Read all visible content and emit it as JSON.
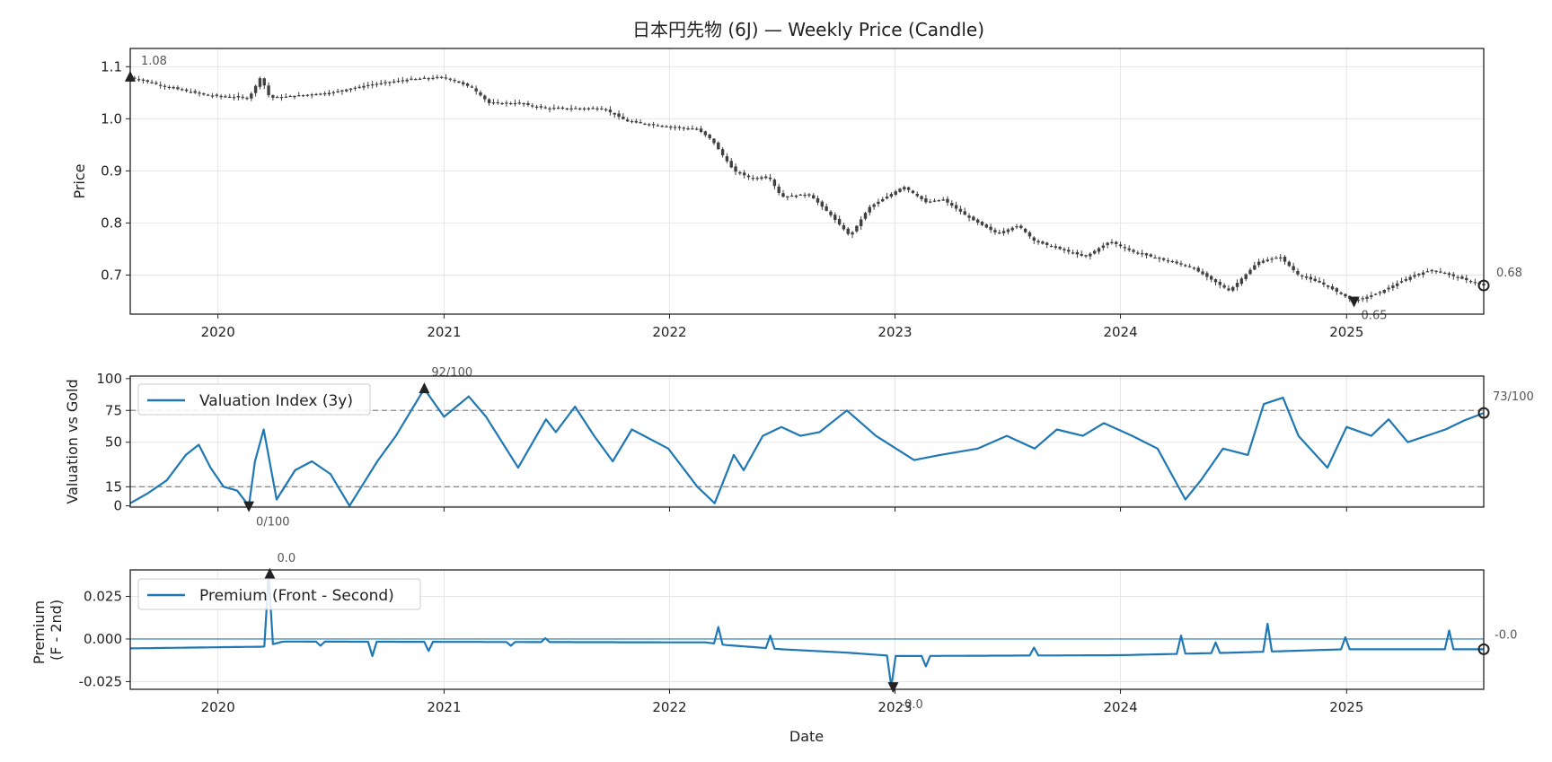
{
  "chart_data": [
    {
      "type": "candlestick",
      "title": "日本円先物 (6J) — Weekly Price (Candle)",
      "xlabel": "",
      "ylabel": "Price",
      "xlim": [
        "2019-08-12",
        "2025-08-11"
      ],
      "ylim": [
        0.625,
        1.135
      ],
      "x_ticks": [
        "2020",
        "2021",
        "2022",
        "2023",
        "2024",
        "2025"
      ],
      "y_ticks": [
        "0.7",
        "0.8",
        "0.9",
        "1.0",
        "1.1"
      ],
      "grid": true,
      "annotations": [
        {
          "label": "1.08",
          "x": "2019-08-12",
          "y": 1.08,
          "marker": "up-triangle"
        },
        {
          "label": "0.65",
          "x": "2025-01-13",
          "y": 0.65,
          "marker": "down-triangle"
        },
        {
          "label": "0.68",
          "x": "2025-08-11",
          "y": 0.68,
          "marker": "circle"
        }
      ],
      "close_anchors": [
        [
          "2019-08-12",
          1.08
        ],
        [
          "2019-10-15",
          1.06
        ],
        [
          "2019-12-15",
          1.045
        ],
        [
          "2020-02-20",
          1.04
        ],
        [
          "2020-03-10",
          1.08
        ],
        [
          "2020-03-25",
          1.04
        ],
        [
          "2020-05-15",
          1.045
        ],
        [
          "2020-07-01",
          1.05
        ],
        [
          "2020-09-01",
          1.065
        ],
        [
          "2020-11-01",
          1.075
        ],
        [
          "2021-01-01",
          1.08
        ],
        [
          "2021-02-15",
          1.06
        ],
        [
          "2021-03-15",
          1.03
        ],
        [
          "2021-05-01",
          1.03
        ],
        [
          "2021-06-15",
          1.02
        ],
        [
          "2021-09-15",
          1.02
        ],
        [
          "2021-10-25",
          0.995
        ],
        [
          "2021-12-30",
          0.985
        ],
        [
          "2022-02-15",
          0.98
        ],
        [
          "2022-03-10",
          0.96
        ],
        [
          "2022-04-15",
          0.9
        ],
        [
          "2022-05-15",
          0.885
        ],
        [
          "2022-06-10",
          0.89
        ],
        [
          "2022-07-01",
          0.85
        ],
        [
          "2022-08-15",
          0.855
        ],
        [
          "2022-09-15",
          0.82
        ],
        [
          "2022-10-20",
          0.775
        ],
        [
          "2022-11-20",
          0.83
        ],
        [
          "2023-01-15",
          0.87
        ],
        [
          "2023-02-20",
          0.84
        ],
        [
          "2023-03-20",
          0.845
        ],
        [
          "2023-05-01",
          0.81
        ],
        [
          "2023-06-15",
          0.78
        ],
        [
          "2023-07-20",
          0.795
        ],
        [
          "2023-08-15",
          0.765
        ],
        [
          "2023-11-05",
          0.735
        ],
        [
          "2023-12-15",
          0.765
        ],
        [
          "2024-01-20",
          0.745
        ],
        [
          "2024-04-25",
          0.715
        ],
        [
          "2024-06-25",
          0.67
        ],
        [
          "2024-07-25",
          0.705
        ],
        [
          "2024-08-10",
          0.725
        ],
        [
          "2024-09-15",
          0.735
        ],
        [
          "2024-10-15",
          0.7
        ],
        [
          "2024-11-20",
          0.685
        ],
        [
          "2025-01-13",
          0.65
        ],
        [
          "2025-02-20",
          0.665
        ],
        [
          "2025-04-20",
          0.7
        ],
        [
          "2025-05-20",
          0.71
        ],
        [
          "2025-07-01",
          0.695
        ],
        [
          "2025-08-11",
          0.68
        ]
      ]
    },
    {
      "type": "line",
      "ylabel": "Valuation vs Gold",
      "ylim": [
        -1,
        102
      ],
      "x_ticks": [
        "2020",
        "2021",
        "2022",
        "2023",
        "2024",
        "2025"
      ],
      "y_ticks": [
        "0",
        "15",
        "50",
        "75",
        "100"
      ],
      "reference_lines": [
        75,
        15
      ],
      "legend": {
        "label": "Valuation Index (3y)",
        "position": "top-left"
      },
      "series": [
        {
          "name": "Valuation Index (3y)",
          "points": [
            [
              "2019-08-12",
              2
            ],
            [
              "2019-09-10",
              10
            ],
            [
              "2019-10-10",
              20
            ],
            [
              "2019-11-10",
              40
            ],
            [
              "2019-12-01",
              48
            ],
            [
              "2019-12-20",
              30
            ],
            [
              "2020-01-10",
              15
            ],
            [
              "2020-02-01",
              12
            ],
            [
              "2020-02-20",
              0
            ],
            [
              "2020-03-01",
              35
            ],
            [
              "2020-03-15",
              60
            ],
            [
              "2020-04-05",
              5
            ],
            [
              "2020-05-05",
              28
            ],
            [
              "2020-06-01",
              35
            ],
            [
              "2020-07-01",
              25
            ],
            [
              "2020-08-01",
              0
            ],
            [
              "2020-09-15",
              35
            ],
            [
              "2020-10-15",
              55
            ],
            [
              "2020-11-30",
              92
            ],
            [
              "2021-01-01",
              70
            ],
            [
              "2021-02-10",
              86
            ],
            [
              "2021-03-10",
              70
            ],
            [
              "2021-05-01",
              30
            ],
            [
              "2021-06-15",
              68
            ],
            [
              "2021-07-01",
              58
            ],
            [
              "2021-08-01",
              78
            ],
            [
              "2021-09-01",
              55
            ],
            [
              "2021-10-01",
              35
            ],
            [
              "2021-11-01",
              60
            ],
            [
              "2021-12-30",
              45
            ],
            [
              "2022-02-15",
              15
            ],
            [
              "2022-03-15",
              2
            ],
            [
              "2022-04-15",
              40
            ],
            [
              "2022-05-01",
              28
            ],
            [
              "2022-06-01",
              55
            ],
            [
              "2022-07-01",
              62
            ],
            [
              "2022-08-01",
              55
            ],
            [
              "2022-09-01",
              58
            ],
            [
              "2022-10-15",
              75
            ],
            [
              "2022-12-01",
              55
            ],
            [
              "2023-02-01",
              36
            ],
            [
              "2023-03-15",
              40
            ],
            [
              "2023-05-15",
              45
            ],
            [
              "2023-07-01",
              55
            ],
            [
              "2023-08-15",
              45
            ],
            [
              "2023-09-20",
              60
            ],
            [
              "2023-11-01",
              55
            ],
            [
              "2023-12-05",
              65
            ],
            [
              "2024-01-20",
              55
            ],
            [
              "2024-03-01",
              45
            ],
            [
              "2024-04-15",
              5
            ],
            [
              "2024-05-10",
              20
            ],
            [
              "2024-06-15",
              45
            ],
            [
              "2024-07-25",
              40
            ],
            [
              "2024-08-20",
              80
            ],
            [
              "2024-09-20",
              85
            ],
            [
              "2024-10-15",
              55
            ],
            [
              "2024-12-01",
              30
            ],
            [
              "2025-01-01",
              62
            ],
            [
              "2025-02-10",
              55
            ],
            [
              "2025-03-10",
              68
            ],
            [
              "2025-04-10",
              50
            ],
            [
              "2025-06-10",
              60
            ],
            [
              "2025-07-10",
              67
            ],
            [
              "2025-08-11",
              73
            ]
          ]
        }
      ],
      "annotations": [
        {
          "label": "92/100",
          "x": "2020-11-30",
          "y": 92,
          "marker": "up-triangle"
        },
        {
          "label": "0/100",
          "x": "2020-02-20",
          "y": 0,
          "marker": "down-triangle"
        },
        {
          "label": "73/100",
          "x": "2025-08-11",
          "y": 73,
          "marker": "circle"
        }
      ]
    },
    {
      "type": "line",
      "xlabel": "Date",
      "ylabel": "Premium\n(F - 2nd)",
      "ylim": [
        -0.0295,
        0.0405
      ],
      "x_ticks": [
        "2020",
        "2021",
        "2022",
        "2023",
        "2024",
        "2025"
      ],
      "y_ticks": [
        "-0.025",
        "0.000",
        "0.025"
      ],
      "reference_lines": [
        0
      ],
      "legend": {
        "label": "Premium (Front - Second)",
        "position": "top-left"
      },
      "series": [
        {
          "name": "Premium (Front - Second)",
          "baseline": [
            [
              "2019-08-12",
              -0.0055
            ],
            [
              "2020-03-15",
              -0.0045
            ],
            [
              "2020-04-15",
              -0.0015
            ],
            [
              "2022-03-01",
              -0.002
            ],
            [
              "2022-04-01",
              -0.0035
            ],
            [
              "2022-07-01",
              -0.006
            ],
            [
              "2022-10-15",
              -0.008
            ],
            [
              "2022-12-31",
              -0.01
            ],
            [
              "2023-12-31",
              -0.0095
            ],
            [
              "2024-07-01",
              -0.008
            ],
            [
              "2024-12-31",
              -0.006
            ],
            [
              "2025-08-11",
              -0.006
            ]
          ],
          "spikes": [
            [
              "2020-03-25",
              0.038
            ],
            [
              "2020-06-15",
              -0.004
            ],
            [
              "2020-09-10",
              -0.01
            ],
            [
              "2020-12-10",
              -0.007
            ],
            [
              "2021-04-20",
              -0.004
            ],
            [
              "2021-06-15",
              0.0005
            ],
            [
              "2022-03-20",
              0.007
            ],
            [
              "2022-06-15",
              0.002
            ],
            [
              "2022-12-29",
              -0.028
            ],
            [
              "2023-02-20",
              -0.016
            ],
            [
              "2023-08-15",
              -0.005
            ],
            [
              "2024-04-10",
              0.002
            ],
            [
              "2024-06-05",
              -0.002
            ],
            [
              "2024-08-25",
              0.009
            ],
            [
              "2024-12-31",
              0.001
            ],
            [
              "2025-06-15",
              0.005
            ]
          ]
        }
      ],
      "annotations": [
        {
          "label": "0.0",
          "x": "2020-03-25",
          "y": 0.038,
          "marker": "up-triangle"
        },
        {
          "label": "-0.0",
          "x": "2022-12-29",
          "y": -0.028,
          "marker": "down-triangle"
        },
        {
          "label": "-0.0",
          "x": "2025-08-11",
          "y": -0.006,
          "marker": "circle"
        }
      ]
    }
  ],
  "colors": {
    "line": "#1f77b4",
    "candle": "#404040",
    "refline": "#8c8c8c",
    "grid": "#e6e6e6",
    "marker": "#222222"
  }
}
